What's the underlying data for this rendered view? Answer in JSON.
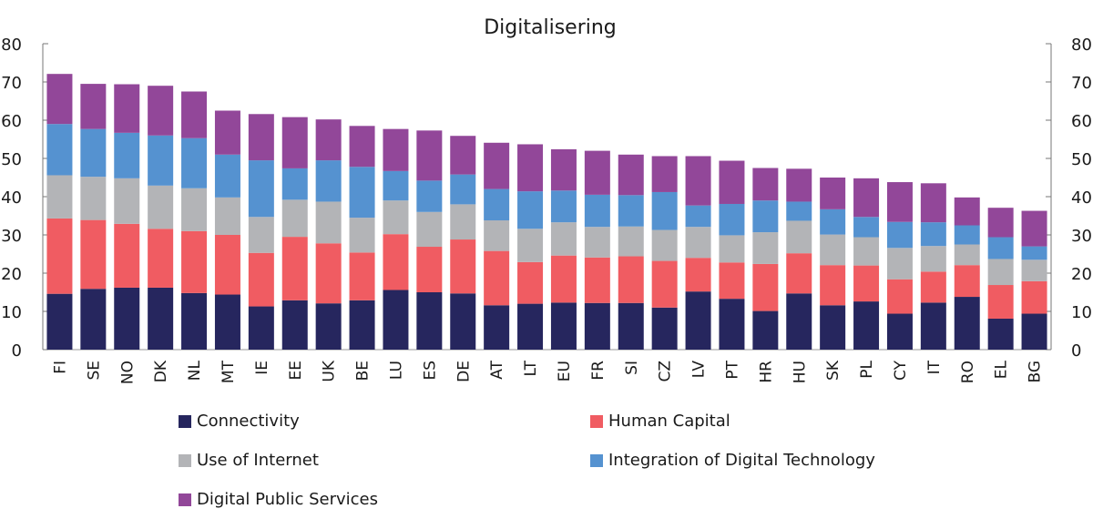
{
  "chart_data": {
    "type": "bar",
    "stacked": true,
    "title": "Digitalisering",
    "xlabel": "",
    "ylabel": "",
    "ylim": [
      0,
      80
    ],
    "yticks": [
      0,
      10,
      20,
      30,
      40,
      50,
      60,
      70,
      80
    ],
    "ytick_labels": [
      "0",
      "10",
      "20",
      "30",
      "40",
      "50",
      "60",
      "70",
      "80"
    ],
    "secondary_y_axis": true,
    "grid": false,
    "legend_position": "bottom",
    "categories": [
      "FI",
      "SE",
      "NO",
      "DK",
      "NL",
      "MT",
      "IE",
      "EE",
      "UK",
      "BE",
      "LU",
      "ES",
      "DE",
      "AT",
      "LT",
      "EU",
      "FR",
      "SI",
      "CZ",
      "LV",
      "PT",
      "HR",
      "HU",
      "SK",
      "PL",
      "CY",
      "IT",
      "RO",
      "EL",
      "BG"
    ],
    "series": [
      {
        "name": "Connectivity",
        "color": "#26265e",
        "values": [
          14.6,
          15.9,
          16.2,
          16.2,
          14.8,
          14.4,
          11.3,
          12.9,
          12.1,
          12.9,
          15.6,
          15.0,
          14.7,
          11.6,
          12.0,
          12.3,
          12.2,
          12.2,
          11.0,
          15.2,
          13.3,
          10.1,
          14.7,
          11.6,
          12.6,
          9.4,
          12.3,
          13.8,
          8.1,
          9.4
        ]
      },
      {
        "name": "Human Capital",
        "color": "#f05c62",
        "values": [
          19.7,
          18.0,
          16.7,
          15.4,
          16.2,
          15.6,
          14.0,
          16.6,
          15.7,
          12.5,
          14.6,
          11.9,
          14.1,
          14.2,
          10.9,
          12.3,
          11.9,
          12.2,
          12.2,
          8.8,
          9.5,
          12.3,
          10.5,
          10.5,
          9.4,
          9.0,
          8.1,
          8.3,
          8.8,
          8.5
        ]
      },
      {
        "name": "Use of Internet",
        "color": "#b3b4b7",
        "values": [
          11.3,
          11.3,
          11.9,
          11.3,
          11.2,
          9.8,
          9.4,
          9.7,
          10.9,
          9.1,
          8.8,
          9.1,
          9.2,
          8.0,
          8.7,
          8.7,
          8.0,
          7.8,
          8.1,
          8.1,
          7.1,
          8.3,
          8.5,
          8.0,
          7.4,
          8.2,
          6.7,
          5.4,
          6.8,
          5.6
        ]
      },
      {
        "name": "Integration of Digital Technology",
        "color": "#5592d0",
        "values": [
          13.4,
          12.5,
          11.9,
          13.1,
          13.1,
          11.2,
          14.8,
          8.2,
          10.8,
          13.3,
          7.7,
          8.2,
          7.8,
          8.2,
          9.8,
          8.3,
          8.4,
          8.2,
          9.9,
          5.6,
          8.2,
          8.3,
          5.0,
          6.6,
          5.3,
          6.8,
          6.2,
          5.0,
          5.7,
          3.5
        ]
      },
      {
        "name": "Digital Public Services",
        "color": "#924799",
        "values": [
          13.1,
          11.8,
          12.7,
          13.0,
          12.2,
          11.5,
          12.1,
          13.4,
          10.7,
          10.7,
          11.0,
          13.1,
          10.1,
          12.1,
          12.3,
          10.8,
          11.5,
          10.6,
          9.4,
          12.9,
          11.3,
          8.5,
          8.6,
          8.3,
          10.1,
          10.4,
          10.2,
          7.3,
          7.7,
          9.3
        ]
      }
    ]
  },
  "legend": {
    "items": [
      {
        "label": "Connectivity",
        "color": "#26265e"
      },
      {
        "label": "Human Capital",
        "color": "#f05c62"
      },
      {
        "label": "Use of Internet",
        "color": "#b3b4b7"
      },
      {
        "label": "Integration of Digital Technology",
        "color": "#5592d0"
      },
      {
        "label": "Digital Public Services",
        "color": "#924799"
      }
    ]
  }
}
